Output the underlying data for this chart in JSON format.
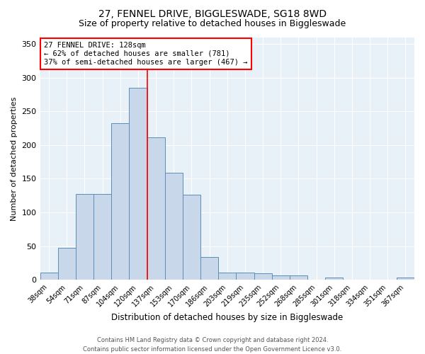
{
  "title1": "27, FENNEL DRIVE, BIGGLESWADE, SG18 8WD",
  "title2": "Size of property relative to detached houses in Biggleswade",
  "xlabel": "Distribution of detached houses by size in Biggleswade",
  "ylabel": "Number of detached properties",
  "categories": [
    "38sqm",
    "54sqm",
    "71sqm",
    "87sqm",
    "104sqm",
    "120sqm",
    "137sqm",
    "153sqm",
    "170sqm",
    "186sqm",
    "203sqm",
    "219sqm",
    "235sqm",
    "252sqm",
    "268sqm",
    "285sqm",
    "301sqm",
    "318sqm",
    "334sqm",
    "351sqm",
    "367sqm"
  ],
  "values": [
    11,
    47,
    127,
    127,
    232,
    285,
    211,
    159,
    126,
    34,
    11,
    11,
    10,
    7,
    6,
    0,
    3,
    0,
    0,
    0,
    3
  ],
  "bar_color": "#c8d8ea",
  "bar_edge_color": "#5b8db8",
  "vline_x_index": 5,
  "vline_color": "red",
  "annotation_text": "27 FENNEL DRIVE: 128sqm\n← 62% of detached houses are smaller (781)\n37% of semi-detached houses are larger (467) →",
  "annotation_box_color": "white",
  "annotation_box_edge": "red",
  "ylim": [
    0,
    360
  ],
  "yticks": [
    0,
    50,
    100,
    150,
    200,
    250,
    300,
    350
  ],
  "footer1": "Contains HM Land Registry data © Crown copyright and database right 2024.",
  "footer2": "Contains public sector information licensed under the Open Government Licence v3.0.",
  "bg_color": "#e8f0f8",
  "title1_fontsize": 10,
  "title2_fontsize": 9,
  "bar_width": 1.0
}
